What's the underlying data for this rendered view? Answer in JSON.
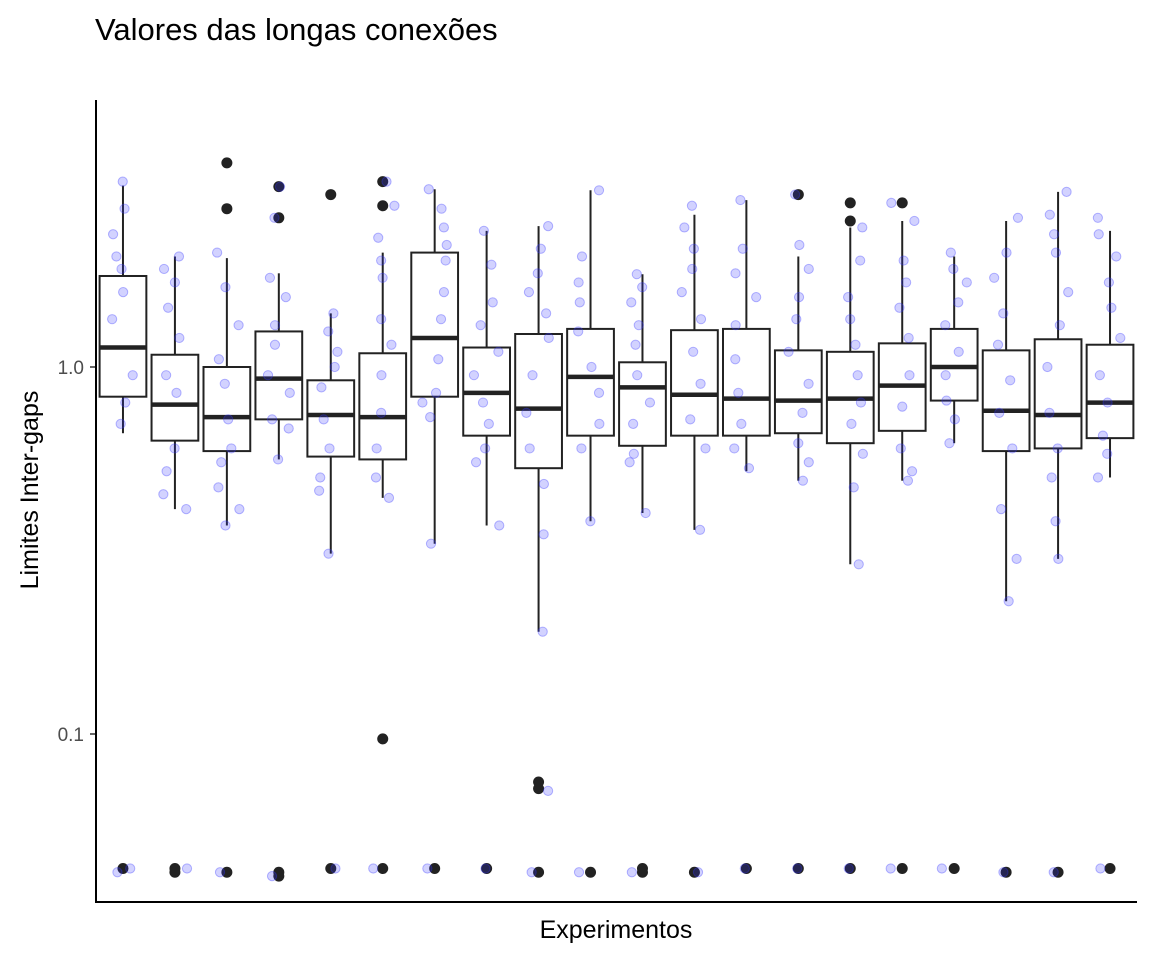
{
  "chart_data": {
    "type": "boxplot",
    "title": "Valores das longas conexões",
    "xlabel": "Experimentos",
    "ylabel": "Limites Inter-gaps",
    "y_scale": "log10",
    "y_ticks": [
      {
        "value": 0.1,
        "label": "0.1"
      },
      {
        "value": 1.0,
        "label": "1.0"
      }
    ],
    "ylim": [
      0.035,
      4.5
    ],
    "grid": false,
    "legend": "none",
    "colors": {
      "box": "#222222",
      "outlier": "#222222",
      "jitter": "#3333ff"
    },
    "boxes": [
      {
        "whisker_low": 0.66,
        "q1": 0.83,
        "median": 1.13,
        "q3": 1.77,
        "whisker_high": 3.12,
        "outliers": [
          0.043
        ],
        "jitter": [
          3.2,
          2.7,
          2.3,
          2.0,
          1.85,
          1.6,
          1.35,
          0.95,
          0.8,
          0.7,
          0.042,
          0.043
        ]
      },
      {
        "whisker_low": 0.41,
        "q1": 0.63,
        "median": 0.79,
        "q3": 1.08,
        "whisker_high": 2.0,
        "outliers": [
          0.043,
          0.042
        ],
        "jitter": [
          2.0,
          1.85,
          1.7,
          1.45,
          1.2,
          0.95,
          0.85,
          0.6,
          0.52,
          0.45,
          0.41,
          0.043
        ]
      },
      {
        "whisker_low": 0.37,
        "q1": 0.59,
        "median": 0.73,
        "q3": 1.0,
        "whisker_high": 1.98,
        "outliers": [
          3.6,
          2.7,
          0.042
        ],
        "jitter": [
          2.05,
          1.65,
          1.3,
          1.05,
          0.9,
          0.72,
          0.6,
          0.55,
          0.47,
          0.41,
          0.37,
          0.042
        ]
      },
      {
        "whisker_low": 0.56,
        "q1": 0.72,
        "median": 0.93,
        "q3": 1.25,
        "whisker_high": 1.8,
        "outliers": [
          3.1,
          2.55,
          0.042,
          0.041
        ],
        "jitter": [
          3.1,
          2.55,
          1.75,
          1.55,
          1.3,
          1.15,
          0.95,
          0.85,
          0.72,
          0.68,
          0.56,
          0.041
        ]
      },
      {
        "whisker_low": 0.31,
        "q1": 0.57,
        "median": 0.74,
        "q3": 0.92,
        "whisker_high": 1.4,
        "outliers": [
          2.95,
          0.043
        ],
        "jitter": [
          1.4,
          1.25,
          1.1,
          1.0,
          0.88,
          0.72,
          0.6,
          0.5,
          0.46,
          0.31,
          0.043
        ]
      },
      {
        "whisker_low": 0.44,
        "q1": 0.56,
        "median": 0.73,
        "q3": 1.09,
        "whisker_high": 2.05,
        "outliers": [
          3.2,
          2.75,
          0.097,
          0.043
        ],
        "jitter": [
          3.2,
          2.75,
          2.25,
          1.95,
          1.75,
          1.35,
          1.15,
          0.95,
          0.75,
          0.6,
          0.5,
          0.44,
          0.043
        ]
      },
      {
        "whisker_low": 0.33,
        "q1": 0.83,
        "median": 1.2,
        "q3": 2.05,
        "whisker_high": 3.05,
        "outliers": [
          0.043
        ],
        "jitter": [
          3.05,
          2.7,
          2.4,
          2.15,
          1.95,
          1.6,
          1.35,
          1.05,
          0.85,
          0.8,
          0.73,
          0.33,
          0.043
        ]
      },
      {
        "whisker_low": 0.37,
        "q1": 0.65,
        "median": 0.85,
        "q3": 1.13,
        "whisker_high": 2.35,
        "outliers": [
          0.043
        ],
        "jitter": [
          2.35,
          1.9,
          1.5,
          1.3,
          1.1,
          0.95,
          0.8,
          0.7,
          0.6,
          0.55,
          0.37,
          0.043
        ]
      },
      {
        "whisker_low": 0.19,
        "q1": 0.53,
        "median": 0.77,
        "q3": 1.23,
        "whisker_high": 2.42,
        "outliers": [
          0.074,
          0.071,
          0.042
        ],
        "jitter": [
          2.42,
          2.1,
          1.8,
          1.6,
          1.4,
          1.2,
          0.95,
          0.75,
          0.6,
          0.48,
          0.35,
          0.19,
          0.07,
          0.042
        ]
      },
      {
        "whisker_low": 0.38,
        "q1": 0.65,
        "median": 0.94,
        "q3": 1.27,
        "whisker_high": 3.03,
        "outliers": [
          0.042
        ],
        "jitter": [
          3.03,
          2.0,
          1.7,
          1.5,
          1.25,
          1.0,
          0.85,
          0.7,
          0.6,
          0.38,
          0.042
        ]
      },
      {
        "whisker_low": 0.4,
        "q1": 0.61,
        "median": 0.88,
        "q3": 1.03,
        "whisker_high": 1.79,
        "outliers": [
          0.043,
          0.042
        ],
        "jitter": [
          1.79,
          1.65,
          1.5,
          1.3,
          1.15,
          0.95,
          0.8,
          0.7,
          0.58,
          0.55,
          0.4,
          0.042
        ]
      },
      {
        "whisker_low": 0.36,
        "q1": 0.65,
        "median": 0.84,
        "q3": 1.26,
        "whisker_high": 2.6,
        "outliers": [
          0.042
        ],
        "jitter": [
          2.75,
          2.4,
          2.1,
          1.85,
          1.6,
          1.35,
          1.1,
          0.9,
          0.72,
          0.6,
          0.36,
          0.042
        ]
      },
      {
        "whisker_low": 0.52,
        "q1": 0.65,
        "median": 0.82,
        "q3": 1.27,
        "whisker_high": 2.85,
        "outliers": [
          0.043
        ],
        "jitter": [
          2.85,
          2.1,
          1.8,
          1.55,
          1.3,
          1.05,
          0.85,
          0.7,
          0.6,
          0.53,
          0.043
        ]
      },
      {
        "whisker_low": 0.49,
        "q1": 0.66,
        "median": 0.81,
        "q3": 1.11,
        "whisker_high": 2.0,
        "outliers": [
          2.95,
          0.043
        ],
        "jitter": [
          2.95,
          2.15,
          1.85,
          1.55,
          1.35,
          1.1,
          0.9,
          0.75,
          0.62,
          0.55,
          0.49,
          0.043
        ]
      },
      {
        "whisker_low": 0.29,
        "q1": 0.62,
        "median": 0.82,
        "q3": 1.1,
        "whisker_high": 2.4,
        "outliers": [
          2.8,
          2.5,
          0.043
        ],
        "jitter": [
          2.4,
          1.95,
          1.55,
          1.35,
          1.15,
          0.95,
          0.8,
          0.7,
          0.58,
          0.47,
          0.29,
          0.043
        ]
      },
      {
        "whisker_low": 0.49,
        "q1": 0.67,
        "median": 0.89,
        "q3": 1.16,
        "whisker_high": 2.5,
        "outliers": [
          2.8,
          0.043
        ],
        "jitter": [
          2.8,
          2.5,
          1.95,
          1.7,
          1.45,
          1.2,
          0.95,
          0.78,
          0.6,
          0.52,
          0.49,
          0.043
        ]
      },
      {
        "whisker_low": 0.62,
        "q1": 0.81,
        "median": 1.0,
        "q3": 1.27,
        "whisker_high": 2.0,
        "outliers": [
          0.043
        ],
        "jitter": [
          2.05,
          1.85,
          1.7,
          1.5,
          1.3,
          1.1,
          0.95,
          0.81,
          0.72,
          0.62,
          0.043
        ]
      },
      {
        "whisker_low": 0.23,
        "q1": 0.59,
        "median": 0.76,
        "q3": 1.11,
        "whisker_high": 2.5,
        "outliers": [
          0.042
        ],
        "jitter": [
          2.55,
          2.05,
          1.75,
          1.4,
          1.15,
          0.92,
          0.75,
          0.6,
          0.41,
          0.3,
          0.23,
          0.042
        ]
      },
      {
        "whisker_low": 0.3,
        "q1": 0.6,
        "median": 0.74,
        "q3": 1.19,
        "whisker_high": 3.0,
        "outliers": [
          0.042
        ],
        "jitter": [
          3.0,
          2.6,
          2.3,
          2.05,
          1.6,
          1.3,
          1.0,
          0.75,
          0.6,
          0.5,
          0.38,
          0.3,
          0.042
        ]
      },
      {
        "whisker_low": 0.5,
        "q1": 0.64,
        "median": 0.8,
        "q3": 1.15,
        "whisker_high": 2.35,
        "outliers": [
          0.043
        ],
        "jitter": [
          2.55,
          2.3,
          2.0,
          1.7,
          1.45,
          1.2,
          0.95,
          0.8,
          0.65,
          0.58,
          0.5,
          0.043
        ]
      }
    ]
  }
}
